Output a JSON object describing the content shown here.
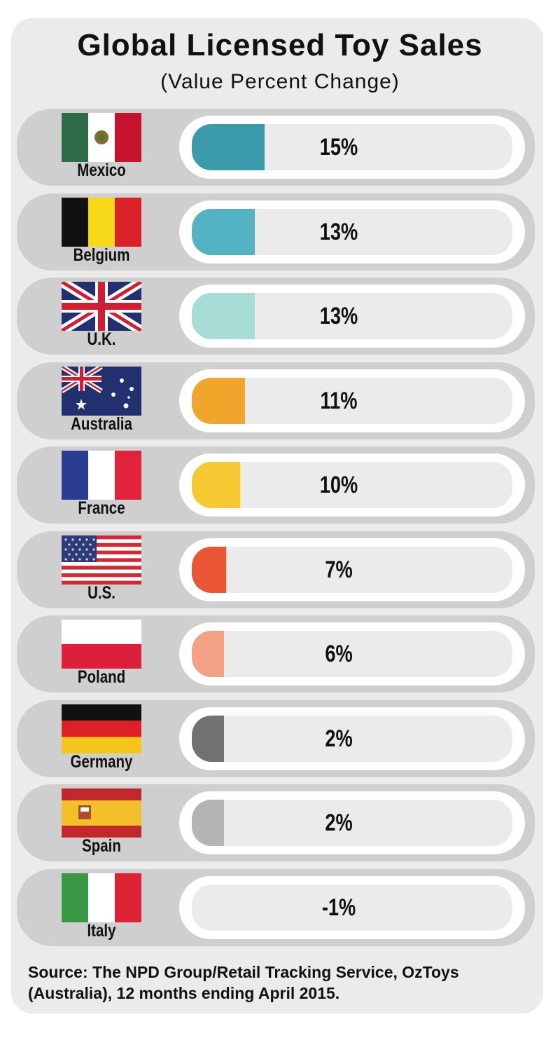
{
  "chart_data": {
    "type": "bar",
    "title": "Global Licensed Toy Sales",
    "subtitle": "(Value Percent Change)",
    "categories": [
      "Mexico",
      "Belgium",
      "U.K.",
      "Australia",
      "France",
      "U.S.",
      "Poland",
      "Germany",
      "Spain",
      "Italy"
    ],
    "values": [
      15,
      13,
      13,
      11,
      10,
      7,
      6,
      2,
      2,
      -1
    ],
    "value_labels": [
      "15%",
      "13%",
      "13%",
      "11%",
      "10%",
      "7%",
      "6%",
      "2%",
      "2%",
      "-1%"
    ],
    "colors": [
      "#3b9bab",
      "#53b3c2",
      "#a8dcd6",
      "#f2a52b",
      "#f6c934",
      "#ea5533",
      "#f3a184",
      "#6f7271",
      "#b3b5b2",
      "#ebebeb"
    ],
    "xlim": [
      0,
      66
    ],
    "source": "Source: The NPD Group/Retail Tracking Service, OzToys (Australia), 12 months ending April 2015."
  },
  "flags": [
    "mexico-flag-icon",
    "belgium-flag-icon",
    "uk-flag-icon",
    "australia-flag-icon",
    "france-flag-icon",
    "us-flag-icon",
    "poland-flag-icon",
    "germany-flag-icon",
    "spain-flag-icon",
    "italy-flag-icon"
  ]
}
